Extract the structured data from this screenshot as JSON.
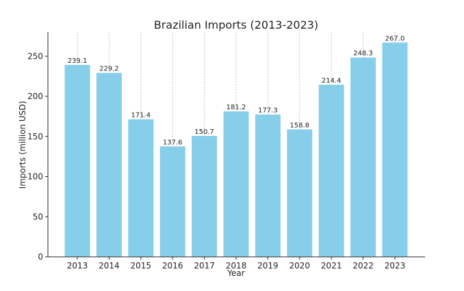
{
  "chart_data": {
    "type": "bar",
    "title": "Brazilian Imports (2013-2023)",
    "xlabel": "Year",
    "ylabel": "Imports (million USD)",
    "categories": [
      "2013",
      "2014",
      "2015",
      "2016",
      "2017",
      "2018",
      "2019",
      "2020",
      "2021",
      "2022",
      "2023"
    ],
    "values": [
      239.1,
      229.2,
      171.4,
      137.6,
      150.7,
      181.2,
      177.3,
      158.8,
      214.4,
      248.3,
      267.0
    ],
    "data_labels": [
      "239.1",
      "229.2",
      "171.4",
      "137.6",
      "150.7",
      "181.2",
      "177.3",
      "158.8",
      "214.4",
      "248.3",
      "267.0"
    ],
    "ylim": [
      0,
      280
    ],
    "yticks": [
      0,
      50,
      100,
      150,
      200,
      250
    ],
    "grid": "vertical dashed",
    "bar_color": "#87CEEB"
  }
}
